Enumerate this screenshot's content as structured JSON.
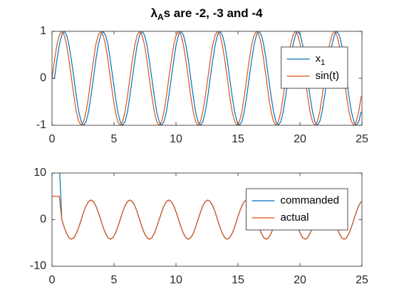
{
  "chart_data": [
    {
      "type": "line",
      "title": "λ",
      "title_subscript": "A",
      "title_rest": "s are -2, -3 and -4",
      "x": [
        0,
        0.2,
        0.39,
        0.59,
        0.79,
        0.98,
        1.18,
        1.37,
        1.57,
        1.77,
        1.96,
        2.16,
        2.36,
        2.55,
        2.75,
        2.95,
        3.14,
        3.34,
        3.53,
        3.73,
        3.93,
        4.12,
        4.32,
        4.52,
        4.71,
        4.91,
        5.11,
        5.3,
        5.5,
        5.69,
        5.89,
        6.09,
        6.28,
        6.48,
        6.68,
        6.87,
        7.07,
        7.26,
        7.46,
        7.66,
        7.85,
        8.05,
        8.25,
        8.44,
        8.64,
        8.84,
        9.03,
        9.23,
        9.42,
        9.62,
        9.82,
        10.01,
        10.21,
        10.41,
        10.6,
        10.8,
        11.0,
        11.19,
        11.39,
        11.58,
        11.78,
        11.98,
        12.17,
        12.37,
        12.57,
        12.76,
        12.96,
        13.16,
        13.35,
        13.55,
        13.74,
        13.94,
        14.14,
        14.33,
        14.53,
        14.73,
        14.92,
        15.12,
        15.32,
        15.51,
        15.71,
        15.9,
        16.1,
        16.3,
        16.49,
        16.69,
        16.89,
        17.08,
        17.28,
        17.47,
        17.67,
        17.87,
        18.06,
        18.26,
        18.46,
        18.65,
        18.85,
        19.05,
        19.24,
        19.44,
        19.63,
        19.83,
        20.03,
        20.22,
        20.42,
        20.62,
        20.81,
        21.01,
        21.21,
        21.4,
        21.6,
        21.79,
        21.99,
        22.19,
        22.38,
        22.58,
        22.78,
        22.97,
        23.17,
        23.37,
        23.56,
        23.76,
        23.95,
        24.15,
        24.35,
        24.54,
        24.74,
        24.94
      ],
      "series": [
        {
          "name": "x",
          "subscript": "1",
          "color": "#0072bd",
          "values": [
            0,
            0,
            0.38,
            0.71,
            0.92,
            1,
            0.92,
            0.71,
            0.38,
            0,
            -0.38,
            -0.71,
            -0.92,
            -1,
            -0.92,
            -0.71,
            -0.38,
            0,
            0.38,
            0.71,
            0.92,
            1,
            0.92,
            0.71,
            0.38,
            0,
            -0.38,
            -0.71,
            -0.92,
            -1,
            -0.92,
            -0.71,
            -0.38,
            0,
            0.38,
            0.71,
            0.92,
            1,
            0.92,
            0.71,
            0.38,
            0,
            -0.38,
            -0.71,
            -0.92,
            -1,
            -0.92,
            -0.71,
            -0.38,
            0,
            0.38,
            0.71,
            0.92,
            1,
            0.92,
            0.71,
            0.38,
            0,
            -0.38,
            -0.71,
            -0.92,
            -1,
            -0.92,
            -0.71,
            -0.38,
            0,
            0.38,
            0.71,
            0.92,
            1,
            0.92,
            0.71,
            0.38,
            0,
            -0.38,
            -0.71,
            -0.92,
            -1,
            -0.92,
            -0.71,
            -0.38,
            0,
            0.38,
            0.71,
            0.92,
            1,
            0.92,
            0.71,
            0.38,
            0,
            -0.38,
            -0.71,
            -0.92,
            -1,
            -0.92,
            -0.71,
            -0.38,
            0,
            0.38,
            0.71,
            0.92,
            1,
            0.92,
            0.71,
            0.38,
            0,
            -0.38,
            -0.71,
            -0.92,
            -1,
            -0.92,
            -0.71,
            -0.38,
            0,
            0.38,
            0.71,
            0.92,
            1,
            0.92,
            0.71,
            0.38,
            0,
            -0.38,
            -0.71,
            -0.92,
            -1,
            -0.92,
            -0.71
          ]
        },
        {
          "name": "sin(t)",
          "color": "#d95319",
          "values": [
            0,
            0.38,
            0.71,
            0.92,
            1,
            0.92,
            0.71,
            0.38,
            0,
            -0.38,
            -0.71,
            -0.92,
            -1,
            -0.92,
            -0.71,
            -0.38,
            0,
            0.38,
            0.71,
            0.92,
            1,
            0.92,
            0.71,
            0.38,
            0,
            -0.38,
            -0.71,
            -0.92,
            -1,
            -0.92,
            -0.71,
            -0.38,
            0,
            0.38,
            0.71,
            0.92,
            1,
            0.92,
            0.71,
            0.38,
            0,
            -0.38,
            -0.71,
            -0.92,
            -1,
            -0.92,
            -0.71,
            -0.38,
            0,
            0.38,
            0.71,
            0.92,
            1,
            0.92,
            0.71,
            0.38,
            0,
            -0.38,
            -0.71,
            -0.92,
            -1,
            -0.92,
            -0.71,
            -0.38,
            0,
            0.38,
            0.71,
            0.92,
            1,
            0.92,
            0.71,
            0.38,
            0,
            -0.38,
            -0.71,
            -0.92,
            -1,
            -0.92,
            -0.71,
            -0.38,
            0,
            0.38,
            0.71,
            0.92,
            1,
            0.92,
            0.71,
            0.38,
            0,
            -0.38,
            -0.71,
            -0.92,
            -1,
            -0.92,
            -0.71,
            -0.38,
            0,
            0.38,
            0.71,
            0.92,
            1,
            0.92,
            0.71,
            0.38,
            0,
            -0.38,
            -0.71,
            -0.92,
            -1,
            -0.92,
            -0.71,
            -0.38,
            0,
            0.38,
            0.71,
            0.92,
            1,
            0.92,
            0.71,
            0.38,
            0,
            -0.38,
            -0.71,
            -0.92,
            -1,
            -0.92,
            -0.71,
            -0.38
          ]
        }
      ],
      "xlim": [
        0,
        25
      ],
      "xticks": [
        0,
        5,
        10,
        15,
        20,
        25
      ],
      "ylim": [
        -1,
        1
      ],
      "yticks": [
        -1,
        0,
        1
      ],
      "legend": "northeast"
    },
    {
      "type": "line",
      "x": [
        0,
        0.2,
        0.39,
        0.59,
        0.79,
        0.98,
        1.18,
        1.37,
        1.57,
        1.77,
        1.96,
        2.16,
        2.36,
        2.55,
        2.75,
        2.95,
        3.14,
        3.34,
        3.53,
        3.73,
        3.93,
        4.12,
        4.32,
        4.52,
        4.71,
        4.91,
        5.11,
        5.3,
        5.5,
        5.69,
        5.89,
        6.09,
        6.28,
        6.48,
        6.68,
        6.87,
        7.07,
        7.26,
        7.46,
        7.66,
        7.85,
        8.05,
        8.25,
        8.44,
        8.64,
        8.84,
        9.03,
        9.23,
        9.42,
        9.62,
        9.82,
        10.01,
        10.21,
        10.41,
        10.6,
        10.8,
        11.0,
        11.19,
        11.39,
        11.58,
        11.78,
        11.98,
        12.17,
        12.37,
        12.57,
        12.76,
        12.96,
        13.16,
        13.35,
        13.55,
        13.74,
        13.94,
        14.14,
        14.33,
        14.53,
        14.73,
        14.92,
        15.12,
        15.32,
        15.51,
        15.71,
        15.9,
        16.1,
        16.3,
        16.49,
        16.69,
        16.89,
        17.08,
        17.28,
        17.47,
        17.67,
        17.87,
        18.06,
        18.26,
        18.46,
        18.65,
        18.85,
        19.05,
        19.24,
        19.44,
        19.63,
        19.83,
        20.03,
        20.22,
        20.42,
        20.62,
        20.81,
        21.01,
        21.21,
        21.4,
        21.6,
        21.79,
        21.99,
        22.19,
        22.38,
        22.58,
        22.78,
        22.97,
        23.17,
        23.37,
        23.56,
        23.76,
        23.95,
        24.15,
        24.35,
        24.54,
        24.74,
        24.94
      ],
      "series": [
        {
          "name": "commanded",
          "color": "#0072bd",
          "values": [
            12,
            12,
            12,
            12,
            0,
            -1.61,
            -2.97,
            -3.88,
            -4.2,
            -3.88,
            -2.97,
            -1.61,
            0,
            1.61,
            2.97,
            3.88,
            4.2,
            3.88,
            2.97,
            1.61,
            0,
            -1.61,
            -2.97,
            -3.88,
            -4.2,
            -3.88,
            -2.97,
            -1.61,
            0,
            1.61,
            2.97,
            3.88,
            4.2,
            3.88,
            2.97,
            1.61,
            0,
            -1.61,
            -2.97,
            -3.88,
            -4.2,
            -3.88,
            -2.97,
            -1.61,
            0,
            1.61,
            2.97,
            3.88,
            4.2,
            3.88,
            2.97,
            1.61,
            0,
            -1.61,
            -2.97,
            -3.88,
            -4.2,
            -3.88,
            -2.97,
            -1.61,
            0,
            1.61,
            2.97,
            3.88,
            4.2,
            3.88,
            2.97,
            1.61,
            0,
            -1.61,
            -2.97,
            -3.88,
            -4.2,
            -3.88,
            -2.97,
            -1.61,
            0,
            1.61,
            2.97,
            3.88,
            4.2,
            3.88,
            2.97,
            1.61,
            0,
            -1.61,
            -2.97,
            -3.88,
            -4.2,
            -3.88,
            -2.97,
            -1.61,
            0,
            1.61,
            2.97,
            3.88,
            4.2,
            3.88,
            2.97,
            1.61,
            0,
            -1.61,
            -2.97,
            -3.88,
            -4.2,
            -3.88,
            -2.97,
            -1.61,
            0,
            1.61,
            2.97,
            3.88,
            4.2,
            3.88,
            2.97,
            1.61,
            0,
            -1.61,
            -2.97,
            -3.88,
            -4.2,
            -3.88,
            -2.97,
            -1.61,
            0,
            1.61,
            2.97,
            3.88
          ]
        },
        {
          "name": "actual",
          "color": "#d95319",
          "values": [
            5,
            5,
            5,
            5,
            0,
            -1.61,
            -2.97,
            -3.88,
            -4.2,
            -3.88,
            -2.97,
            -1.61,
            0,
            1.61,
            2.97,
            3.88,
            4.2,
            3.88,
            2.97,
            1.61,
            0,
            -1.61,
            -2.97,
            -3.88,
            -4.2,
            -3.88,
            -2.97,
            -1.61,
            0,
            1.61,
            2.97,
            3.88,
            4.2,
            3.88,
            2.97,
            1.61,
            0,
            -1.61,
            -2.97,
            -3.88,
            -4.2,
            -3.88,
            -2.97,
            -1.61,
            0,
            1.61,
            2.97,
            3.88,
            4.2,
            3.88,
            2.97,
            1.61,
            0,
            -1.61,
            -2.97,
            -3.88,
            -4.2,
            -3.88,
            -2.97,
            -1.61,
            0,
            1.61,
            2.97,
            3.88,
            4.2,
            3.88,
            2.97,
            1.61,
            0,
            -1.61,
            -2.97,
            -3.88,
            -4.2,
            -3.88,
            -2.97,
            -1.61,
            0,
            1.61,
            2.97,
            3.88,
            4.2,
            3.88,
            2.97,
            1.61,
            0,
            -1.61,
            -2.97,
            -3.88,
            -4.2,
            -3.88,
            -2.97,
            -1.61,
            0,
            1.61,
            2.97,
            3.88,
            4.2,
            3.88,
            2.97,
            1.61,
            0,
            -1.61,
            -2.97,
            -3.88,
            -4.2,
            -3.88,
            -2.97,
            -1.61,
            0,
            1.61,
            2.97,
            3.88,
            4.2,
            3.88,
            2.97,
            1.61,
            0,
            -1.61,
            -2.97,
            -3.88,
            -4.2,
            -3.88,
            -2.97,
            -1.61,
            0,
            1.61,
            2.97,
            3.88
          ]
        }
      ],
      "xlim": [
        0,
        25
      ],
      "xticks": [
        0,
        5,
        10,
        15,
        20,
        25
      ],
      "ylim": [
        -10,
        10
      ],
      "yticks": [
        -10,
        0,
        10
      ],
      "legend": "northeast"
    }
  ]
}
